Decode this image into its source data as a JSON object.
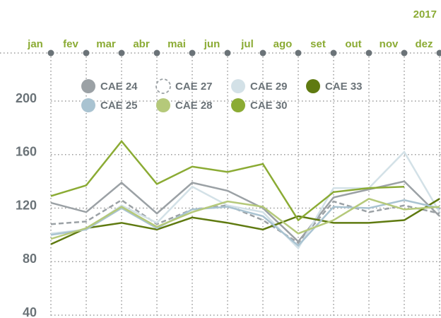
{
  "chart_data": {
    "type": "line",
    "year": "2017",
    "categories": [
      "jan",
      "fev",
      "mar",
      "abr",
      "mai",
      "jun",
      "jul",
      "ago",
      "set",
      "out",
      "nov",
      "dez"
    ],
    "ylim": [
      40,
      200
    ],
    "yticks": [
      40,
      80,
      120,
      160,
      200
    ],
    "grid": true,
    "series": [
      {
        "name": "CAE 24",
        "color": "#9ba1a5",
        "values": [
          124,
          117,
          139,
          116,
          139,
          133,
          120,
          95,
          128,
          134,
          140,
          114
        ]
      },
      {
        "name": "CAE 27",
        "color": "#9ba1a5",
        "dashed": true,
        "values": [
          108,
          110,
          126,
          108,
          119,
          122,
          111,
          94,
          125,
          117,
          122,
          116
        ]
      },
      {
        "name": "CAE 29",
        "color": "#d3e1e7",
        "values": [
          101,
          104,
          122,
          109,
          136,
          122,
          117,
          90,
          135,
          135,
          162,
          117
        ]
      },
      {
        "name": "CAE 33",
        "color": "#5f7a10",
        "values": [
          93,
          105,
          109,
          104,
          113,
          109,
          104,
          114,
          109,
          109,
          111,
          127
        ]
      },
      {
        "name": "CAE 25",
        "color": "#a9c3d1",
        "values": [
          100,
          104,
          120,
          105,
          119,
          121,
          114,
          92,
          121,
          120,
          126,
          120
        ]
      },
      {
        "name": "CAE 28",
        "color": "#b5c97a",
        "values": [
          97,
          105,
          121,
          106,
          117,
          125,
          121,
          101,
          111,
          127,
          119,
          121
        ]
      },
      {
        "name": "CAE 30",
        "color": "#8bab34",
        "values": [
          129,
          137,
          170,
          138,
          151,
          147,
          153,
          111,
          132,
          135,
          136,
          null
        ]
      }
    ]
  }
}
